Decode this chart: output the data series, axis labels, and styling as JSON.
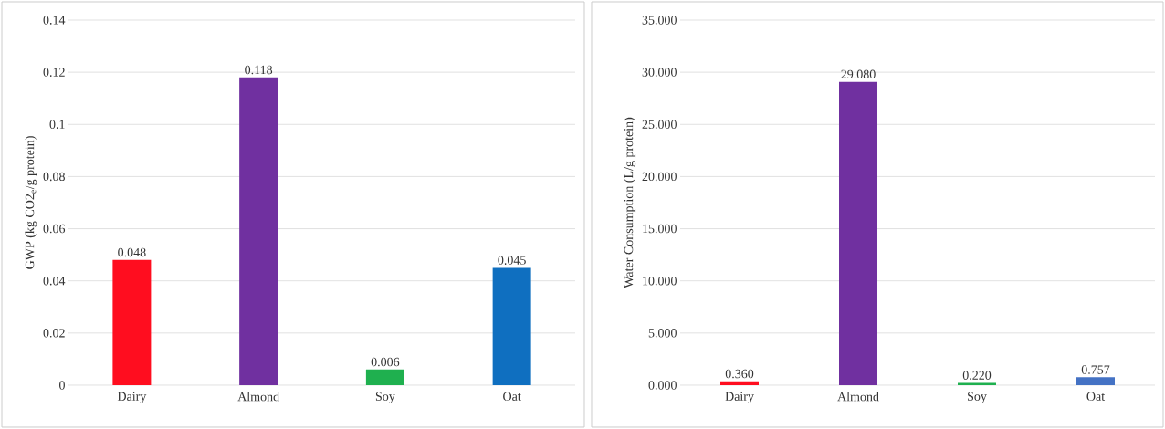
{
  "chart_data": [
    {
      "type": "bar",
      "ylabel": "GWP (kg CO2$_{e}$/g protein)",
      "categories": [
        "Dairy",
        "Almond",
        "Soy",
        "Oat"
      ],
      "values": [
        0.048,
        0.118,
        0.006,
        0.045
      ],
      "colors": [
        "#ff0d1f",
        "#7030a0",
        "#1fb04f",
        "#0f6fc0"
      ],
      "ylim": [
        0,
        0.14
      ],
      "yticks": [
        0,
        0.02,
        0.04,
        0.06,
        0.08,
        0.1,
        0.12,
        0.14
      ],
      "grid": "y",
      "data_labels": true
    },
    {
      "type": "bar",
      "ylabel": "Water Consumption (L/g protein)",
      "categories": [
        "Dairy",
        "Almond",
        "Soy",
        "Oat"
      ],
      "values": [
        0.36,
        29.08,
        0.22,
        0.757
      ],
      "value_labels": [
        "0.360",
        "29.080",
        "0.220",
        "0.757"
      ],
      "colors": [
        "#ff0d1f",
        "#7030a0",
        "#1fb04f",
        "#4472c4"
      ],
      "ylim": [
        0,
        35
      ],
      "yticks": [
        {
          "value": 0,
          "label": "0.000"
        },
        {
          "value": 5,
          "label": "5.000"
        },
        {
          "value": 10,
          "label": "10.000"
        },
        {
          "value": 15,
          "label": "15.000"
        },
        {
          "value": 20,
          "label": "20.000"
        },
        {
          "value": 25,
          "label": "25.000"
        },
        {
          "value": 30,
          "label": "30.000"
        },
        {
          "value": 35,
          "label": "35.000"
        }
      ],
      "grid": "y"
    }
  ]
}
